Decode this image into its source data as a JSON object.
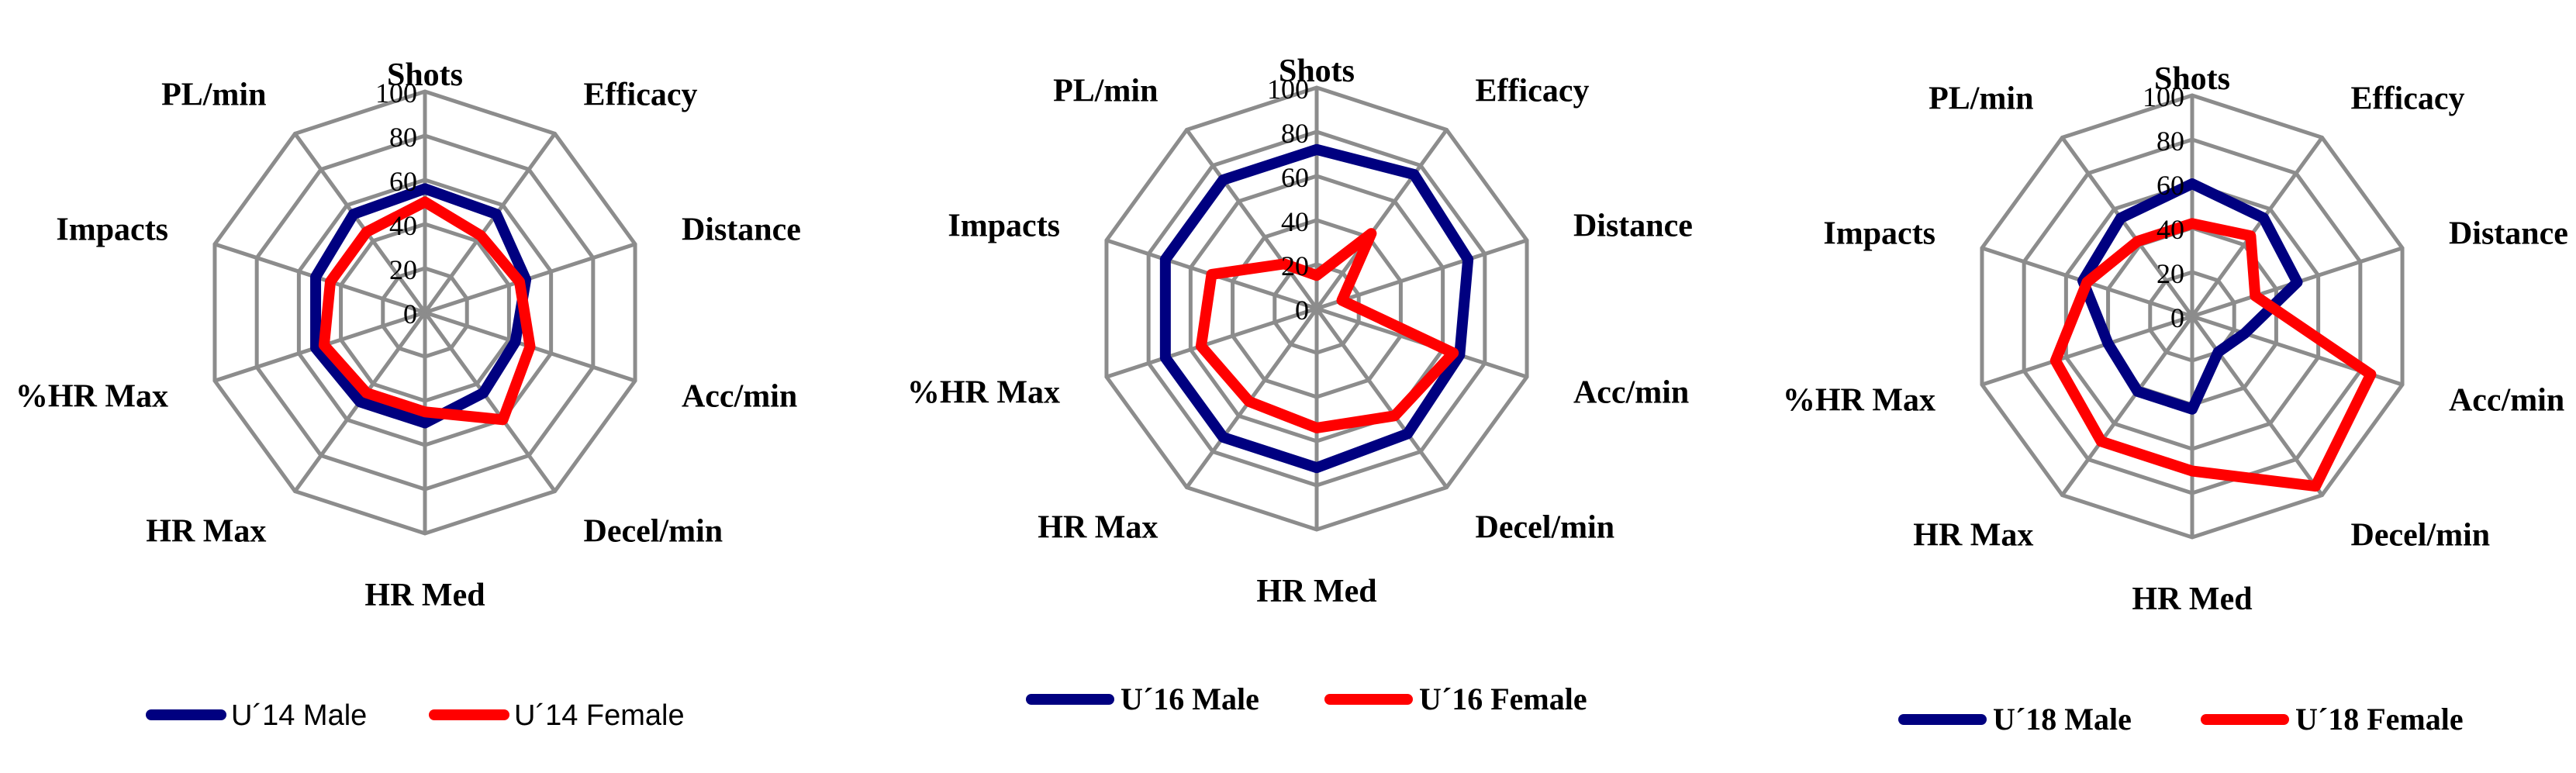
{
  "chart_data": [
    {
      "type": "radar",
      "axes": [
        "Shots",
        "Efficacy",
        "Distance",
        "Acc/min",
        "Decel/min",
        "HR Med",
        "HR Max",
        "%HR Max",
        "Impacts",
        "PL/min"
      ],
      "rticks": [
        "0",
        "20",
        "40",
        "60",
        "80",
        "100"
      ],
      "rlim": [
        0,
        100
      ],
      "grid": true,
      "legend_position": "bottom",
      "series": [
        {
          "name": "U´14 Male",
          "color": "#000080",
          "values": [
            56,
            55,
            48,
            43,
            45,
            50,
            50,
            52,
            52,
            55
          ]
        },
        {
          "name": "U´14 Female",
          "color": "#ff0000",
          "values": [
            50,
            43,
            45,
            50,
            60,
            45,
            45,
            48,
            45,
            45
          ]
        }
      ]
    },
    {
      "type": "radar",
      "axes": [
        "Shots",
        "Efficacy",
        "Distance",
        "Acc/min",
        "Decel/min",
        "HR Med",
        "HR Max",
        "%HR Max",
        "Impacts",
        "PL/min"
      ],
      "rticks": [
        "0",
        "20",
        "40",
        "60",
        "80",
        "100"
      ],
      "rlim": [
        0,
        100
      ],
      "grid": true,
      "legend_position": "bottom",
      "series": [
        {
          "name": "U´16 Male",
          "color": "#000080",
          "values": [
            72,
            75,
            72,
            68,
            70,
            72,
            72,
            72,
            72,
            72
          ]
        },
        {
          "name": "U´16 Female",
          "color": "#ff0000",
          "values": [
            15,
            42,
            12,
            65,
            60,
            54,
            52,
            55,
            50,
            25
          ]
        }
      ]
    },
    {
      "type": "radar",
      "axes": [
        "Shots",
        "Efficacy",
        "Distance",
        "Acc/min",
        "Decel/min",
        "HR Med",
        "HR Max",
        "%HR Max",
        "Impacts",
        "PL/min"
      ],
      "rticks": [
        "0",
        "20",
        "40",
        "60",
        "80",
        "100"
      ],
      "rlim": [
        0,
        100
      ],
      "grid": true,
      "legend_position": "bottom",
      "series": [
        {
          "name": "U´18 Male",
          "color": "#000080",
          "values": [
            60,
            55,
            50,
            25,
            20,
            42,
            42,
            40,
            52,
            55
          ]
        },
        {
          "name": "U´18 Female",
          "color": "#ff0000",
          "values": [
            42,
            45,
            30,
            85,
            95,
            70,
            70,
            65,
            50,
            42
          ]
        }
      ]
    }
  ]
}
